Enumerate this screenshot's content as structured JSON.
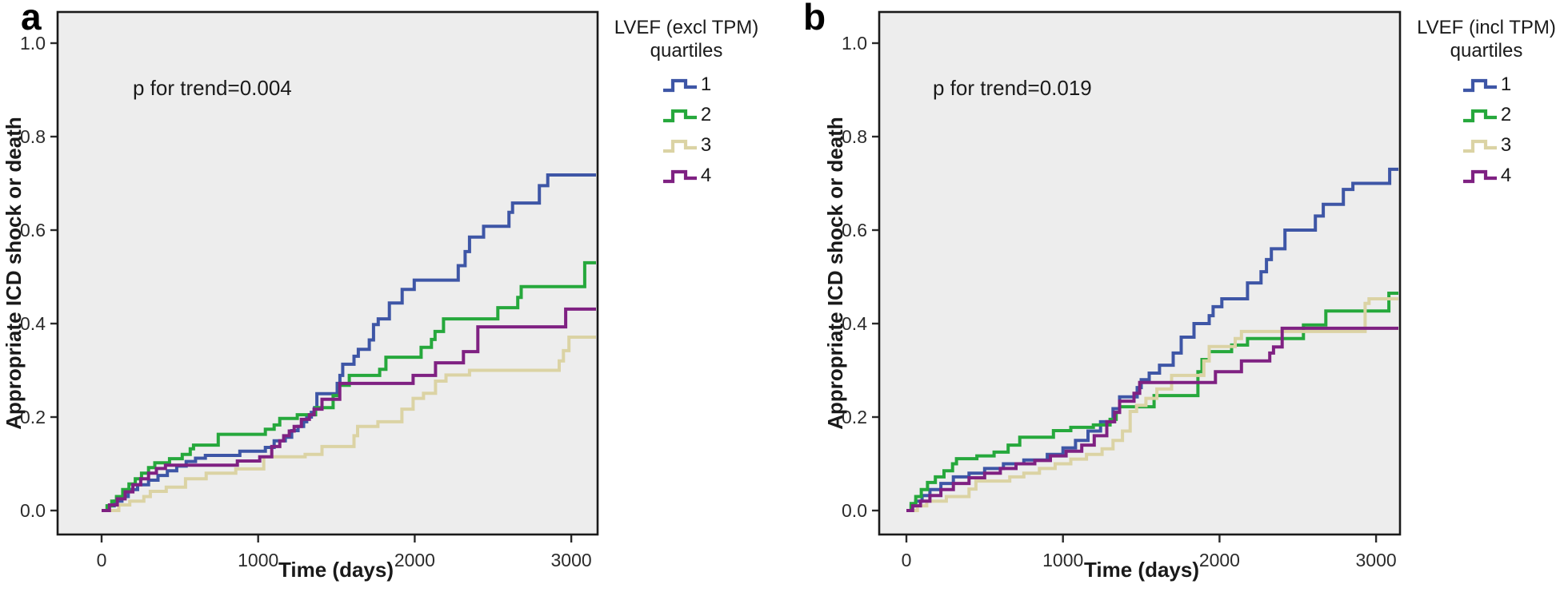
{
  "figure": {
    "panels": [
      {
        "letter": "a",
        "legend_title_line1": "LVEF (excl TPM)",
        "legend_title_line2": "quartiles"
      },
      {
        "letter": "b",
        "legend_title_line1": "LVEF (incl TPM)",
        "legend_title_line2": "quartiles"
      }
    ]
  },
  "chart_data": [
    {
      "type": "line",
      "subtype": "kaplan-meier-cumulative-incidence-step",
      "title": "",
      "xlabel": "Time (days)",
      "ylabel": "Appropriate ICD shock or death",
      "annotation": "p for trend=0.004",
      "legend_title": "LVEF (excl TPM) quartiles",
      "legend_position": "right",
      "grid": false,
      "plot_background": "#ededed",
      "xlim": [
        0,
        3160
      ],
      "ylim": [
        0.0,
        1.0
      ],
      "x_ticks": [
        0,
        1000,
        2000,
        3000
      ],
      "y_ticks": [
        0.0,
        0.2,
        0.4,
        0.6,
        0.8,
        1.0
      ],
      "series": [
        {
          "name": "1",
          "color": "#3E56A6",
          "points": [
            [
              0,
              0
            ],
            [
              40,
              0.01
            ],
            [
              80,
              0.02
            ],
            [
              130,
              0.03
            ],
            [
              170,
              0.045
            ],
            [
              230,
              0.055
            ],
            [
              300,
              0.065
            ],
            [
              360,
              0.075
            ],
            [
              420,
              0.085
            ],
            [
              480,
              0.095
            ],
            [
              540,
              0.105
            ],
            [
              600,
              0.112
            ],
            [
              663,
              0.118
            ],
            [
              883,
              0.127
            ],
            [
              1046,
              0.135
            ],
            [
              1102,
              0.149
            ],
            [
              1173,
              0.157
            ],
            [
              1214,
              0.171
            ],
            [
              1255,
              0.18
            ],
            [
              1290,
              0.19
            ],
            [
              1310,
              0.2
            ],
            [
              1340,
              0.21
            ],
            [
              1360,
              0.22
            ],
            [
              1375,
              0.25
            ],
            [
              1505,
              0.272
            ],
            [
              1522,
              0.289
            ],
            [
              1540,
              0.313
            ],
            [
              1612,
              0.33
            ],
            [
              1640,
              0.345
            ],
            [
              1710,
              0.365
            ],
            [
              1737,
              0.398
            ],
            [
              1767,
              0.41
            ],
            [
              1838,
              0.444
            ],
            [
              1920,
              0.473
            ],
            [
              1997,
              0.493
            ],
            [
              2278,
              0.524
            ],
            [
              2322,
              0.554
            ],
            [
              2350,
              0.585
            ],
            [
              2440,
              0.608
            ],
            [
              2602,
              0.638
            ],
            [
              2625,
              0.658
            ],
            [
              2796,
              0.695
            ],
            [
              2850,
              0.718
            ]
          ]
        },
        {
          "name": "2",
          "color": "#26A83C",
          "points": [
            [
              0,
              0
            ],
            [
              35,
              0.01
            ],
            [
              65,
              0.02
            ],
            [
              95,
              0.03
            ],
            [
              135,
              0.045
            ],
            [
              175,
              0.057
            ],
            [
              215,
              0.068
            ],
            [
              255,
              0.08
            ],
            [
              300,
              0.092
            ],
            [
              340,
              0.102
            ],
            [
              434,
              0.111
            ],
            [
              515,
              0.12
            ],
            [
              566,
              0.132
            ],
            [
              587,
              0.14
            ],
            [
              745,
              0.163
            ],
            [
              1046,
              0.174
            ],
            [
              1102,
              0.183
            ],
            [
              1138,
              0.197
            ],
            [
              1250,
              0.205
            ],
            [
              1367,
              0.22
            ],
            [
              1479,
              0.246
            ],
            [
              1520,
              0.268
            ],
            [
              1582,
              0.289
            ],
            [
              1776,
              0.302
            ],
            [
              1816,
              0.328
            ],
            [
              2041,
              0.349
            ],
            [
              2107,
              0.366
            ],
            [
              2130,
              0.383
            ],
            [
              2184,
              0.41
            ],
            [
              2531,
              0.434
            ],
            [
              2658,
              0.456
            ],
            [
              2680,
              0.479
            ],
            [
              3086,
              0.53
            ]
          ]
        },
        {
          "name": "3",
          "color": "#DBD3A4",
          "points": [
            [
              0,
              0
            ],
            [
              110,
              0.012
            ],
            [
              180,
              0.02
            ],
            [
              270,
              0.03
            ],
            [
              311,
              0.041
            ],
            [
              413,
              0.05
            ],
            [
              536,
              0.068
            ],
            [
              668,
              0.08
            ],
            [
              857,
              0.089
            ],
            [
              1036,
              0.115
            ],
            [
              1300,
              0.12
            ],
            [
              1408,
              0.137
            ],
            [
              1612,
              0.16
            ],
            [
              1635,
              0.18
            ],
            [
              1765,
              0.19
            ],
            [
              1918,
              0.217
            ],
            [
              1990,
              0.24
            ],
            [
              2056,
              0.251
            ],
            [
              2133,
              0.277
            ],
            [
              2200,
              0.29
            ],
            [
              2350,
              0.3
            ],
            [
              2923,
              0.32
            ],
            [
              2950,
              0.342
            ],
            [
              2985,
              0.371
            ]
          ]
        },
        {
          "name": "4",
          "color": "#7F2182",
          "points": [
            [
              0,
              0
            ],
            [
              50,
              0.012
            ],
            [
              100,
              0.025
            ],
            [
              150,
              0.04
            ],
            [
              200,
              0.055
            ],
            [
              250,
              0.068
            ],
            [
              300,
              0.08
            ],
            [
              350,
              0.09
            ],
            [
              408,
              0.097
            ],
            [
              867,
              0.106
            ],
            [
              1010,
              0.115
            ],
            [
              1087,
              0.137
            ],
            [
              1138,
              0.149
            ],
            [
              1163,
              0.16
            ],
            [
              1199,
              0.17
            ],
            [
              1230,
              0.18
            ],
            [
              1276,
              0.195
            ],
            [
              1327,
              0.205
            ],
            [
              1357,
              0.217
            ],
            [
              1408,
              0.238
            ],
            [
              1521,
              0.272
            ],
            [
              1990,
              0.289
            ],
            [
              2133,
              0.316
            ],
            [
              2311,
              0.34
            ],
            [
              2403,
              0.393
            ],
            [
              2964,
              0.431
            ]
          ]
        }
      ]
    },
    {
      "type": "line",
      "subtype": "kaplan-meier-cumulative-incidence-step",
      "title": "",
      "xlabel": "Time (days)",
      "ylabel": "Appropriate ICD shock or death",
      "annotation": "p for trend=0.019",
      "legend_title": "LVEF (incl TPM) quartiles",
      "legend_position": "right",
      "grid": false,
      "plot_background": "#ededed",
      "xlim": [
        0,
        3150
      ],
      "ylim": [
        0.0,
        1.0
      ],
      "x_ticks": [
        0,
        1000,
        2000,
        3000
      ],
      "y_ticks": [
        0.0,
        0.2,
        0.4,
        0.6,
        0.8,
        1.0
      ],
      "series": [
        {
          "name": "1",
          "color": "#3E56A6",
          "points": [
            [
              0,
              0
            ],
            [
              30,
              0.01
            ],
            [
              60,
              0.02
            ],
            [
              100,
              0.032
            ],
            [
              150,
              0.045
            ],
            [
              220,
              0.058
            ],
            [
              300,
              0.072
            ],
            [
              400,
              0.08
            ],
            [
              500,
              0.09
            ],
            [
              620,
              0.1
            ],
            [
              750,
              0.108
            ],
            [
              900,
              0.12
            ],
            [
              1000,
              0.134
            ],
            [
              1080,
              0.15
            ],
            [
              1160,
              0.17
            ],
            [
              1240,
              0.19
            ],
            [
              1320,
              0.218
            ],
            [
              1362,
              0.243
            ],
            [
              1474,
              0.263
            ],
            [
              1500,
              0.28
            ],
            [
              1551,
              0.294
            ],
            [
              1617,
              0.311
            ],
            [
              1704,
              0.337
            ],
            [
              1755,
              0.371
            ],
            [
              1837,
              0.4
            ],
            [
              1934,
              0.417
            ],
            [
              1959,
              0.436
            ],
            [
              2015,
              0.453
            ],
            [
              2179,
              0.487
            ],
            [
              2265,
              0.511
            ],
            [
              2300,
              0.537
            ],
            [
              2331,
              0.56
            ],
            [
              2418,
              0.6
            ],
            [
              2612,
              0.63
            ],
            [
              2663,
              0.655
            ],
            [
              2791,
              0.687
            ],
            [
              2852,
              0.7
            ],
            [
              3087,
              0.73
            ]
          ]
        },
        {
          "name": "2",
          "color": "#26A83C",
          "points": [
            [
              0,
              0
            ],
            [
              30,
              0.015
            ],
            [
              60,
              0.03
            ],
            [
              95,
              0.045
            ],
            [
              135,
              0.06
            ],
            [
              185,
              0.072
            ],
            [
              240,
              0.085
            ],
            [
              295,
              0.1
            ],
            [
              320,
              0.111
            ],
            [
              450,
              0.117
            ],
            [
              560,
              0.125
            ],
            [
              650,
              0.14
            ],
            [
              724,
              0.157
            ],
            [
              939,
              0.171
            ],
            [
              1050,
              0.178
            ],
            [
              1194,
              0.183
            ],
            [
              1301,
              0.195
            ],
            [
              1340,
              0.21
            ],
            [
              1362,
              0.222
            ],
            [
              1582,
              0.246
            ],
            [
              1862,
              0.297
            ],
            [
              1888,
              0.323
            ],
            [
              1934,
              0.34
            ],
            [
              2077,
              0.354
            ],
            [
              2179,
              0.368
            ],
            [
              2536,
              0.397
            ],
            [
              2679,
              0.427
            ],
            [
              3082,
              0.465
            ]
          ]
        },
        {
          "name": "3",
          "color": "#DBD3A4",
          "points": [
            [
              0,
              0
            ],
            [
              70,
              0.01
            ],
            [
              130,
              0.02
            ],
            [
              255,
              0.03
            ],
            [
              400,
              0.046
            ],
            [
              444,
              0.063
            ],
            [
              660,
              0.072
            ],
            [
              750,
              0.08
            ],
            [
              850,
              0.09
            ],
            [
              950,
              0.1
            ],
            [
              1050,
              0.11
            ],
            [
              1150,
              0.12
            ],
            [
              1250,
              0.132
            ],
            [
              1320,
              0.15
            ],
            [
              1380,
              0.17
            ],
            [
              1429,
              0.212
            ],
            [
              1470,
              0.225
            ],
            [
              1530,
              0.24
            ],
            [
              1600,
              0.26
            ],
            [
              1694,
              0.289
            ],
            [
              1900,
              0.32
            ],
            [
              1934,
              0.351
            ],
            [
              2100,
              0.368
            ],
            [
              2140,
              0.383
            ],
            [
              2930,
              0.443
            ],
            [
              2955,
              0.453
            ]
          ]
        },
        {
          "name": "4",
          "color": "#7F2182",
          "points": [
            [
              0,
              0
            ],
            [
              40,
              0.01
            ],
            [
              90,
              0.02
            ],
            [
              150,
              0.032
            ],
            [
              220,
              0.045
            ],
            [
              300,
              0.058
            ],
            [
              400,
              0.07
            ],
            [
              500,
              0.08
            ],
            [
              600,
              0.09
            ],
            [
              700,
              0.1
            ],
            [
              820,
              0.107
            ],
            [
              920,
              0.117
            ],
            [
              1020,
              0.127
            ],
            [
              1120,
              0.14
            ],
            [
              1200,
              0.16
            ],
            [
              1280,
              0.19
            ],
            [
              1330,
              0.21
            ],
            [
              1362,
              0.234
            ],
            [
              1454,
              0.251
            ],
            [
              1490,
              0.274
            ],
            [
              1974,
              0.297
            ],
            [
              2140,
              0.32
            ],
            [
              2321,
              0.337
            ],
            [
              2345,
              0.35
            ],
            [
              2400,
              0.39
            ]
          ]
        }
      ]
    }
  ]
}
